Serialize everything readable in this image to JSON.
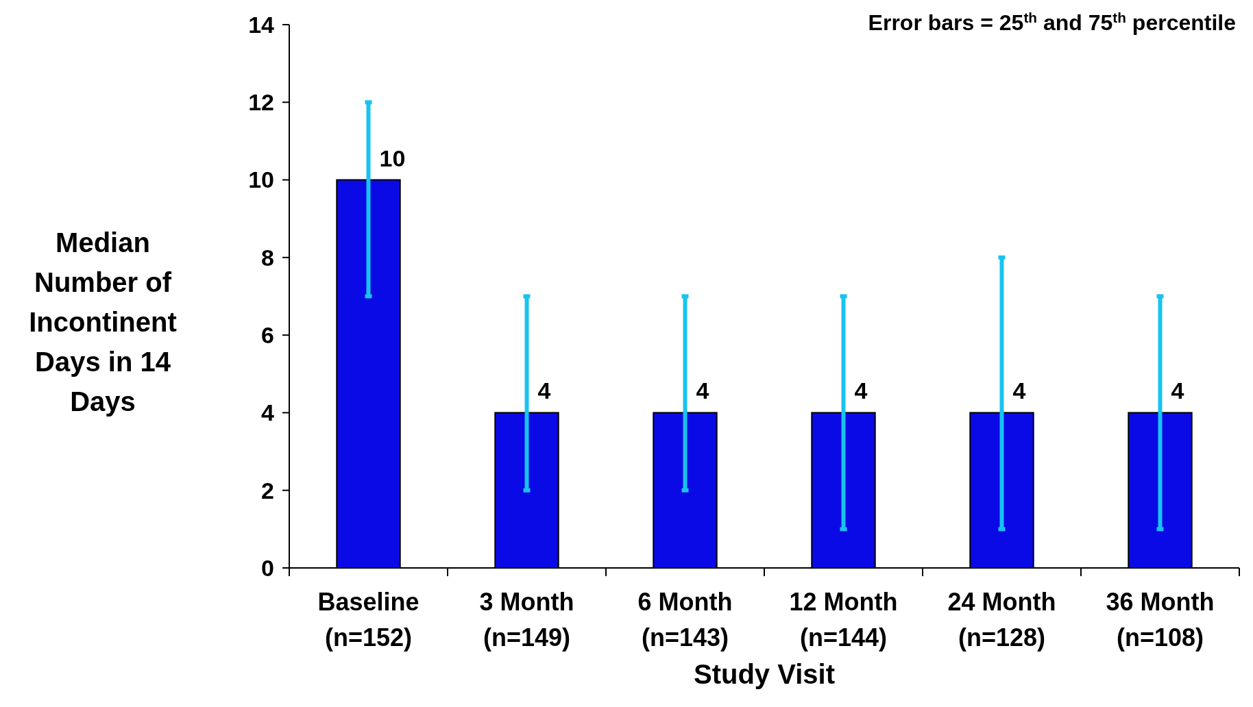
{
  "chart_data": {
    "type": "bar",
    "xlabel": "Study Visit",
    "ylabel": "Median Number of Incontinent Days in 14 Days",
    "categories": [
      "Baseline\n(n=152)",
      "3 Month\n(n=149)",
      "6 Month\n(n=143)",
      "12 Month\n(n=144)",
      "24 Month\n(n=128)",
      "36 Month\n(n=108)"
    ],
    "values": [
      10,
      4,
      4,
      4,
      4,
      4
    ],
    "errors": [
      [
        7,
        12
      ],
      [
        2,
        7
      ],
      [
        2,
        7
      ],
      [
        1,
        7
      ],
      [
        1,
        8
      ],
      [
        1,
        7
      ]
    ],
    "color": "#0a0ae6",
    "ylim": [
      0,
      14
    ],
    "yticks": [
      0,
      2,
      4,
      6,
      8,
      10,
      12,
      14
    ],
    "data_labels": true,
    "grid": false,
    "annotations": [
      "Error bars = 25$^{th}$ and 75$^{th}$ percentile"
    ]
  }
}
